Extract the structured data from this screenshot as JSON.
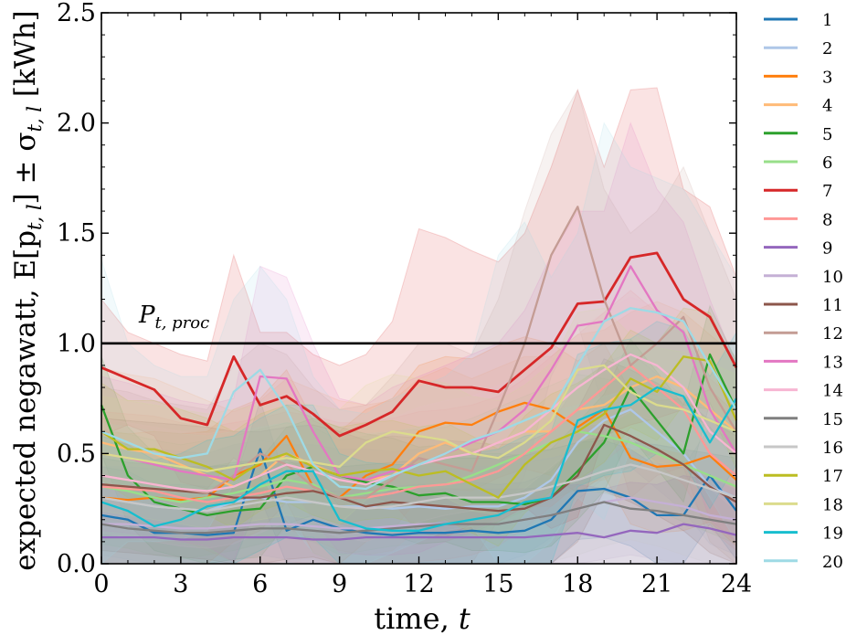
{
  "chart_data": {
    "type": "line",
    "xlabel_text": "time, ",
    "xlabel_var": "t",
    "ylabel_text": "expected negawatt, E[p",
    "ylabel_sub": "t, l",
    "ylabel_mid": "] ± σ",
    "ylabel_sub2": "t, l",
    "ylabel_unit": " [kWh]",
    "xlim": [
      0,
      24
    ],
    "ylim": [
      0.0,
      2.5
    ],
    "xticks": [
      0,
      3,
      6,
      9,
      12,
      15,
      18,
      21,
      24
    ],
    "yticks": [
      0.0,
      0.5,
      1.0,
      1.5,
      2.0,
      2.5
    ],
    "ytick_labels": [
      "0.0",
      "0.5",
      "1.0",
      "1.5",
      "2.0",
      "2.5"
    ],
    "grid": false,
    "legend_position": "right-outside",
    "threshold": {
      "value": 1.0,
      "label_main": "P",
      "label_sub": "t, proc",
      "color": "#000000"
    },
    "x": [
      0,
      1,
      2,
      3,
      4,
      5,
      6,
      7,
      8,
      9,
      10,
      11,
      12,
      13,
      14,
      15,
      16,
      17,
      18,
      19,
      20,
      21,
      22,
      23,
      24
    ],
    "series": [
      {
        "name": "1",
        "color": "#1f77b4",
        "values": [
          0.22,
          0.2,
          0.14,
          0.14,
          0.13,
          0.14,
          0.52,
          0.15,
          0.2,
          0.16,
          0.14,
          0.13,
          0.14,
          0.14,
          0.15,
          0.14,
          0.15,
          0.2,
          0.33,
          0.34,
          0.3,
          0.22,
          0.22,
          0.4,
          0.24
        ]
      },
      {
        "name": "2",
        "color": "#aec7e8",
        "values": [
          0.3,
          0.28,
          0.26,
          0.25,
          0.24,
          0.28,
          0.3,
          0.28,
          0.28,
          0.26,
          0.26,
          0.25,
          0.26,
          0.25,
          0.26,
          0.26,
          0.3,
          0.38,
          0.55,
          0.65,
          0.7,
          0.6,
          0.5,
          0.35,
          0.3
        ]
      },
      {
        "name": "3",
        "color": "#ff7f0e",
        "values": [
          0.3,
          0.29,
          0.3,
          0.29,
          0.3,
          0.4,
          0.45,
          0.58,
          0.35,
          0.3,
          0.4,
          0.45,
          0.6,
          0.64,
          0.63,
          0.69,
          0.73,
          0.7,
          0.62,
          0.7,
          0.48,
          0.44,
          0.45,
          0.49,
          0.38
        ]
      },
      {
        "name": "4",
        "color": "#ffbb78",
        "values": [
          0.55,
          0.52,
          0.5,
          0.45,
          0.4,
          0.35,
          0.4,
          0.5,
          0.45,
          0.4,
          0.38,
          0.4,
          0.5,
          0.55,
          0.5,
          0.55,
          0.6,
          0.6,
          0.7,
          0.72,
          0.8,
          0.85,
          0.8,
          0.7,
          0.6
        ]
      },
      {
        "name": "5",
        "color": "#2ca02c",
        "values": [
          0.72,
          0.4,
          0.28,
          0.25,
          0.22,
          0.24,
          0.25,
          0.4,
          0.44,
          0.4,
          0.37,
          0.35,
          0.31,
          0.32,
          0.28,
          0.28,
          0.27,
          0.3,
          0.42,
          0.55,
          0.8,
          0.65,
          0.5,
          0.95,
          0.7
        ]
      },
      {
        "name": "6",
        "color": "#98df8a",
        "values": [
          0.35,
          0.33,
          0.3,
          0.28,
          0.3,
          0.32,
          0.35,
          0.38,
          0.36,
          0.3,
          0.32,
          0.34,
          0.35,
          0.36,
          0.4,
          0.45,
          0.5,
          0.55,
          0.6,
          0.58,
          0.55,
          0.5,
          0.45,
          0.4,
          0.35
        ]
      },
      {
        "name": "7",
        "color": "#d62728",
        "values": [
          0.89,
          0.84,
          0.79,
          0.66,
          0.63,
          0.94,
          0.72,
          0.76,
          0.68,
          0.58,
          0.63,
          0.69,
          0.83,
          0.8,
          0.8,
          0.78,
          0.88,
          0.98,
          1.18,
          1.19,
          1.39,
          1.41,
          1.2,
          1.12,
          0.89
        ]
      },
      {
        "name": "8",
        "color": "#ff9896",
        "values": [
          0.35,
          0.34,
          0.33,
          0.3,
          0.28,
          0.3,
          0.32,
          0.35,
          0.33,
          0.3,
          0.3,
          0.32,
          0.35,
          0.36,
          0.38,
          0.42,
          0.5,
          0.6,
          0.7,
          0.8,
          0.9,
          0.8,
          0.7,
          0.5,
          0.4
        ]
      },
      {
        "name": "9",
        "color": "#9467bd",
        "values": [
          0.12,
          0.12,
          0.12,
          0.11,
          0.11,
          0.12,
          0.12,
          0.12,
          0.11,
          0.11,
          0.12,
          0.12,
          0.12,
          0.12,
          0.12,
          0.12,
          0.12,
          0.13,
          0.14,
          0.12,
          0.15,
          0.14,
          0.18,
          0.16,
          0.13
        ]
      },
      {
        "name": "10",
        "color": "#c5b0d5",
        "values": [
          0.18,
          0.18,
          0.17,
          0.16,
          0.16,
          0.17,
          0.18,
          0.18,
          0.17,
          0.16,
          0.16,
          0.17,
          0.18,
          0.18,
          0.18,
          0.18,
          0.2,
          0.22,
          0.25,
          0.28,
          0.3,
          0.28,
          0.26,
          0.22,
          0.2
        ]
      },
      {
        "name": "11",
        "color": "#8c564b",
        "values": [
          0.36,
          0.35,
          0.34,
          0.33,
          0.32,
          0.3,
          0.3,
          0.32,
          0.33,
          0.3,
          0.26,
          0.28,
          0.27,
          0.26,
          0.25,
          0.24,
          0.25,
          0.3,
          0.4,
          0.63,
          0.58,
          0.52,
          0.45,
          0.35,
          0.28
        ]
      },
      {
        "name": "12",
        "color": "#c49c94",
        "values": [
          0.4,
          0.38,
          0.36,
          0.34,
          0.32,
          0.4,
          0.5,
          0.45,
          0.35,
          0.3,
          0.3,
          0.38,
          0.48,
          0.45,
          0.42,
          0.7,
          1.0,
          1.4,
          1.62,
          1.2,
          0.9,
          1.0,
          1.12,
          0.8,
          0.6
        ]
      },
      {
        "name": "13",
        "color": "#e377c2",
        "values": [
          0.5,
          0.48,
          0.45,
          0.42,
          0.4,
          0.38,
          0.85,
          0.84,
          0.6,
          0.4,
          0.38,
          0.42,
          0.45,
          0.5,
          0.55,
          0.6,
          0.7,
          0.88,
          1.08,
          1.1,
          1.35,
          1.15,
          1.05,
          0.7,
          0.5
        ]
      },
      {
        "name": "14",
        "color": "#f7b6d2",
        "values": [
          0.4,
          0.38,
          0.36,
          0.34,
          0.33,
          0.35,
          0.4,
          0.45,
          0.42,
          0.38,
          0.36,
          0.4,
          0.45,
          0.48,
          0.5,
          0.55,
          0.6,
          0.7,
          0.8,
          0.88,
          0.95,
          0.9,
          0.8,
          0.6,
          0.5
        ]
      },
      {
        "name": "15",
        "color": "#7f7f7f",
        "values": [
          0.18,
          0.16,
          0.15,
          0.14,
          0.14,
          0.15,
          0.16,
          0.16,
          0.15,
          0.14,
          0.15,
          0.16,
          0.17,
          0.18,
          0.18,
          0.18,
          0.2,
          0.22,
          0.25,
          0.28,
          0.25,
          0.24,
          0.22,
          0.2,
          0.18
        ]
      },
      {
        "name": "16",
        "color": "#c7c7c7",
        "values": [
          0.3,
          0.28,
          0.26,
          0.25,
          0.24,
          0.26,
          0.28,
          0.3,
          0.28,
          0.26,
          0.25,
          0.26,
          0.28,
          0.3,
          0.3,
          0.3,
          0.32,
          0.35,
          0.38,
          0.42,
          0.45,
          0.42,
          0.38,
          0.34,
          0.3
        ]
      },
      {
        "name": "17",
        "color": "#bcbd22",
        "values": [
          0.6,
          0.52,
          0.52,
          0.48,
          0.44,
          0.38,
          0.46,
          0.5,
          0.44,
          0.4,
          0.42,
          0.43,
          0.4,
          0.42,
          0.36,
          0.3,
          0.45,
          0.55,
          0.6,
          0.68,
          0.84,
          0.78,
          0.94,
          0.92,
          0.65
        ]
      },
      {
        "name": "18",
        "color": "#dbdb8d",
        "values": [
          0.5,
          0.48,
          0.46,
          0.44,
          0.42,
          0.44,
          0.46,
          0.48,
          0.46,
          0.44,
          0.55,
          0.6,
          0.58,
          0.56,
          0.5,
          0.48,
          0.55,
          0.65,
          0.88,
          0.9,
          0.78,
          0.72,
          0.7,
          0.65,
          0.6
        ]
      },
      {
        "name": "19",
        "color": "#17becf",
        "values": [
          0.28,
          0.24,
          0.17,
          0.2,
          0.26,
          0.28,
          0.36,
          0.42,
          0.42,
          0.2,
          0.16,
          0.15,
          0.15,
          0.18,
          0.2,
          0.22,
          0.28,
          0.3,
          0.65,
          0.7,
          0.72,
          0.8,
          0.76,
          0.55,
          0.75
        ]
      },
      {
        "name": "20",
        "color": "#9edae5",
        "values": [
          0.6,
          0.55,
          0.5,
          0.48,
          0.5,
          0.78,
          0.88,
          0.7,
          0.45,
          0.35,
          0.34,
          0.4,
          0.45,
          0.5,
          0.56,
          0.6,
          0.65,
          0.7,
          0.9,
          1.1,
          1.16,
          1.14,
          1.1,
          0.9,
          0.7
        ]
      }
    ],
    "upper_band": [
      {
        "name": "7",
        "values": [
          1.2,
          1.05,
          1.0,
          0.95,
          0.92,
          1.4,
          1.05,
          1.05,
          0.95,
          0.9,
          0.95,
          1.1,
          1.52,
          1.48,
          1.42,
          1.37,
          1.5,
          1.8,
          2.15,
          1.8,
          2.15,
          2.16,
          1.7,
          1.62,
          1.3
        ]
      },
      {
        "name": "12",
        "values": [
          0.8,
          0.78,
          0.74,
          0.72,
          0.7,
          0.9,
          1.0,
          0.95,
          0.8,
          0.7,
          0.72,
          0.85,
          1.0,
          1.0,
          0.95,
          1.2,
          1.6,
          1.95,
          2.15,
          1.7,
          1.5,
          1.6,
          1.8,
          1.5,
          1.2
        ]
      },
      {
        "name": "13",
        "values": [
          0.85,
          0.82,
          0.78,
          0.74,
          0.72,
          0.75,
          1.35,
          1.3,
          1.0,
          0.75,
          0.72,
          0.8,
          0.85,
          0.9,
          0.95,
          1.0,
          1.15,
          1.4,
          1.6,
          1.6,
          2.0,
          1.7,
          1.55,
          1.2,
          0.9
        ]
      },
      {
        "name": "20",
        "values": [
          1.38,
          1.0,
          0.9,
          0.85,
          0.85,
          1.2,
          1.35,
          1.2,
          0.85,
          0.7,
          0.68,
          0.75,
          0.8,
          0.85,
          0.95,
          1.4,
          1.55,
          1.3,
          1.5,
          2.0,
          1.8,
          1.75,
          1.7,
          1.5,
          1.3
        ]
      }
    ]
  },
  "colors": {
    "axis": "#000000",
    "background": "#ffffff"
  }
}
